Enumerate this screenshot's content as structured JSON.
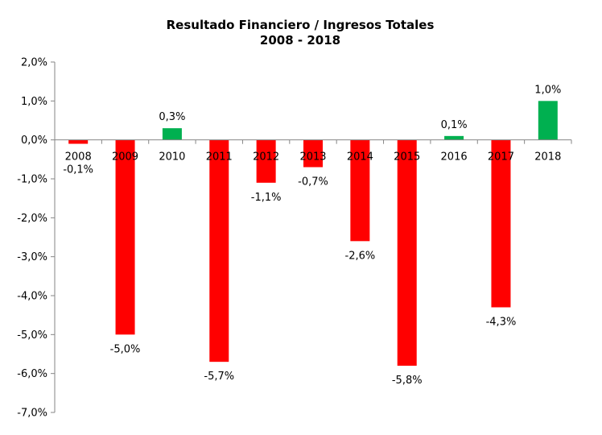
{
  "chart_data": {
    "type": "bar",
    "title": "Resultado Financiero / Ingresos Totales",
    "subtitle": "2008 - 2018",
    "categories": [
      "2008",
      "2009",
      "2010",
      "2011",
      "2012",
      "2013",
      "2014",
      "2015",
      "2016",
      "2017",
      "2018"
    ],
    "values": [
      -0.1,
      -5.0,
      0.3,
      -5.7,
      -1.1,
      -0.7,
      -2.6,
      -5.8,
      0.1,
      -4.3,
      1.0
    ],
    "data_labels": [
      "-0,1%",
      "-5,0%",
      "0,3%",
      "-5,7%",
      "-1,1%",
      "-0,7%",
      "-2,6%",
      "-5,8%",
      "0,1%",
      "-4,3%",
      "1,0%"
    ],
    "ylim": [
      -7.0,
      2.0
    ],
    "ytick_values": [
      2.0,
      1.0,
      0.0,
      -1.0,
      -2.0,
      -3.0,
      -4.0,
      -5.0,
      -6.0,
      -7.0
    ],
    "ytick_labels": [
      "2,0%",
      "1,0%",
      "0,0%",
      "-1,0%",
      "-2,0%",
      "-3,0%",
      "-4,0%",
      "-5,0%",
      "-6,0%",
      "-7,0%"
    ],
    "grid": false,
    "legend": "none",
    "colors": {
      "positive": "#00b050",
      "negative": "#ff0000",
      "axis": "#868686"
    }
  }
}
